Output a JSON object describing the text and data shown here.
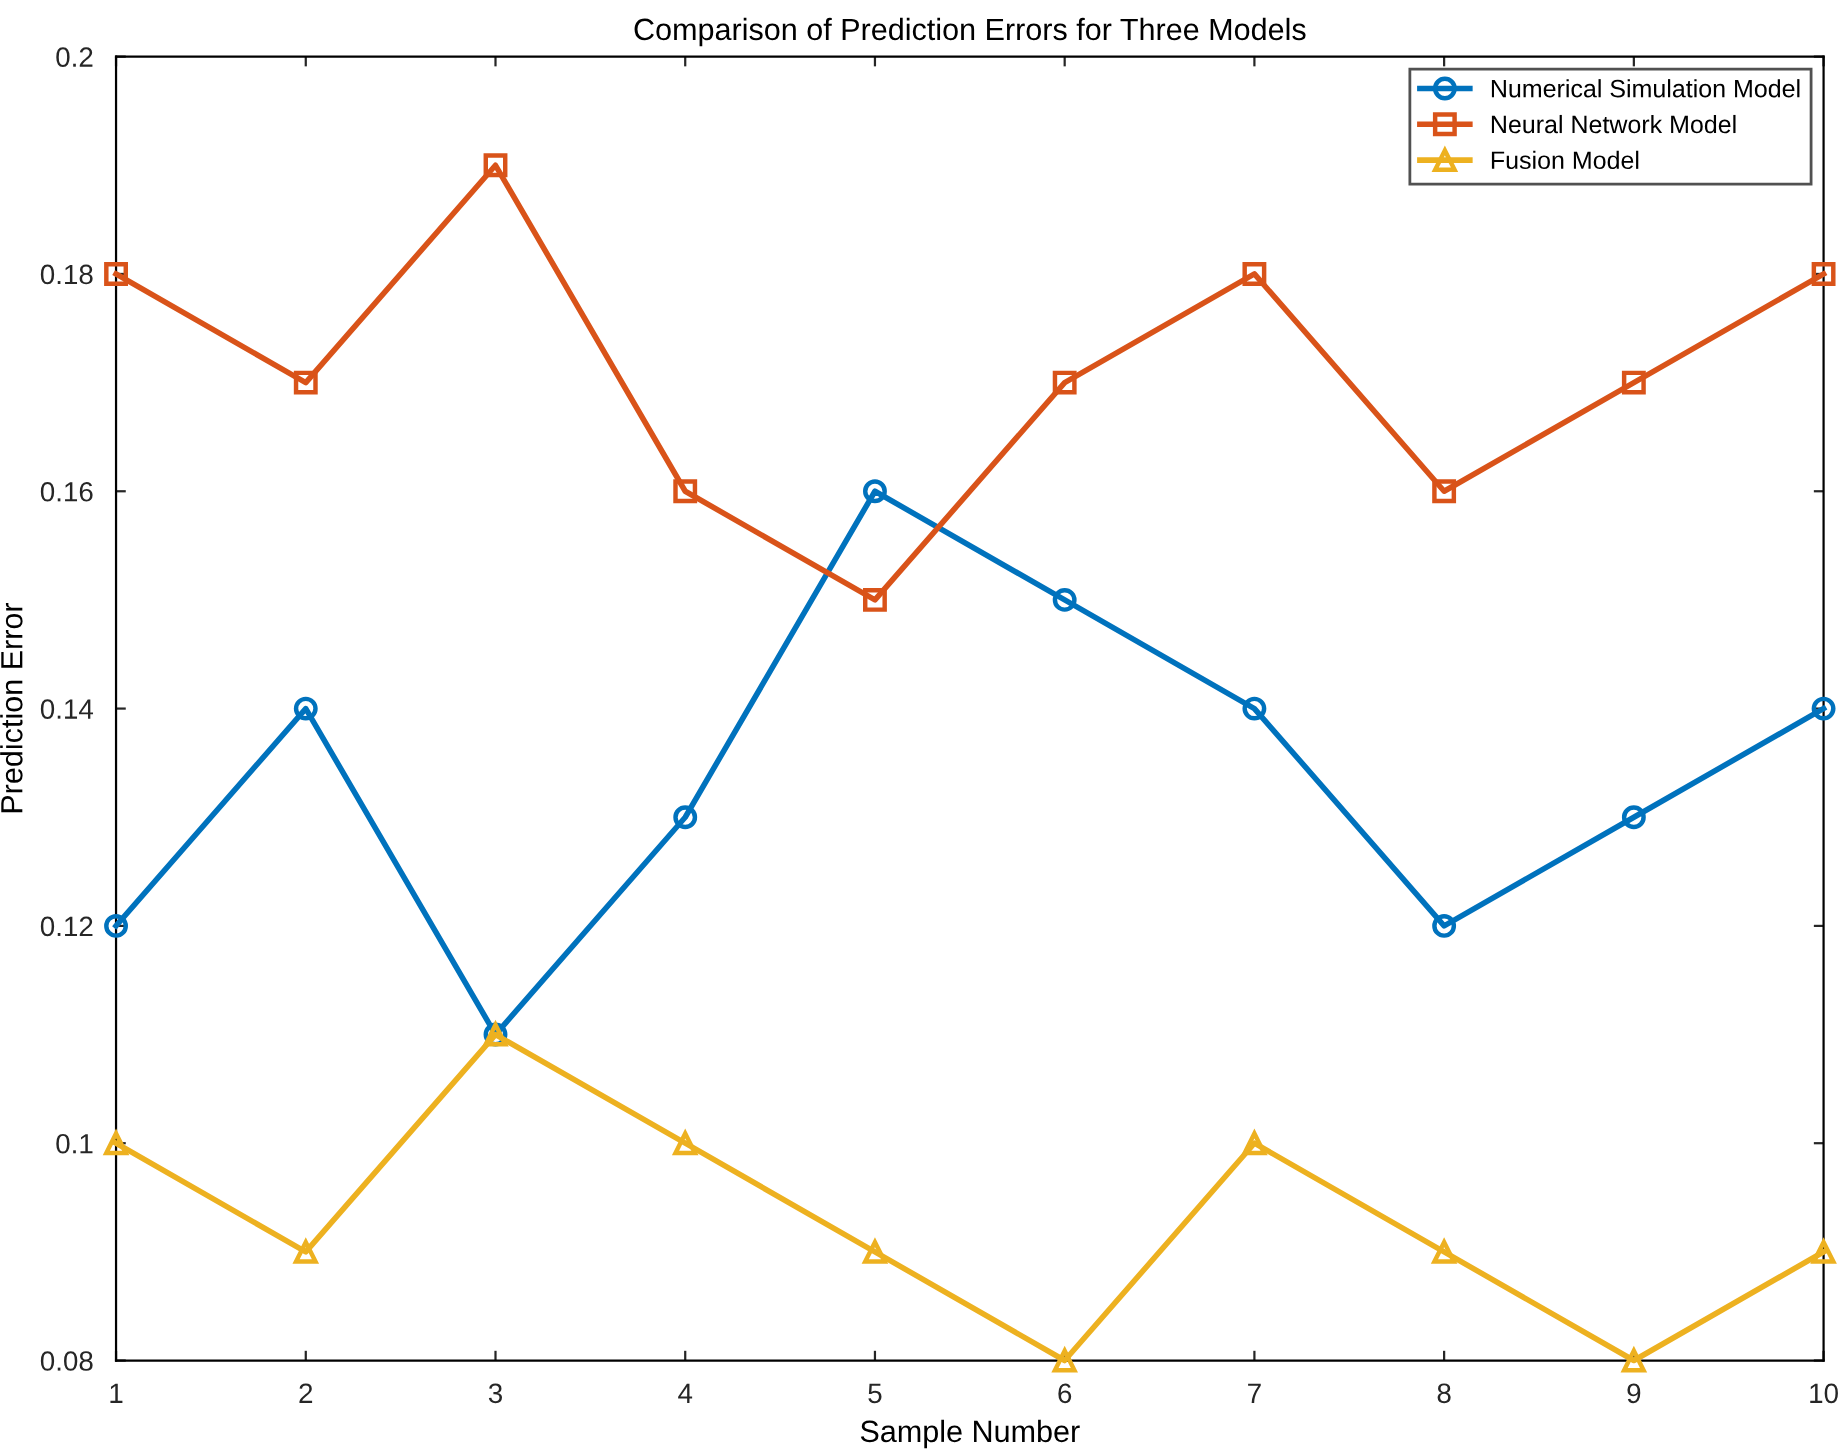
{
  "chart_data": {
    "type": "line",
    "title": "Comparison of Prediction Errors for Three Models",
    "xlabel": "Sample Number",
    "ylabel": "Prediction Error",
    "x": [
      1,
      2,
      3,
      4,
      5,
      6,
      7,
      8,
      9,
      10
    ],
    "series": [
      {
        "name": "Numerical Simulation Model",
        "color": "#0072bd",
        "marker": "circle",
        "values": [
          0.12,
          0.14,
          0.11,
          0.13,
          0.16,
          0.15,
          0.14,
          0.12,
          0.13,
          0.14
        ]
      },
      {
        "name": "Neural Network Model",
        "color": "#d95319",
        "marker": "square",
        "values": [
          0.18,
          0.17,
          0.19,
          0.16,
          0.15,
          0.17,
          0.18,
          0.16,
          0.17,
          0.18
        ]
      },
      {
        "name": "Fusion Model",
        "color": "#edb120",
        "marker": "triangle",
        "values": [
          0.1,
          0.09,
          0.11,
          0.1,
          0.09,
          0.08,
          0.1,
          0.09,
          0.08,
          0.09
        ]
      }
    ],
    "xlim": [
      1,
      10
    ],
    "xticks": [
      1,
      2,
      3,
      4,
      5,
      6,
      7,
      8,
      9,
      10
    ],
    "ylim": [
      0.08,
      0.2
    ],
    "yticks": [
      0.08,
      0.1,
      0.12,
      0.14,
      0.16,
      0.18,
      0.2
    ],
    "grid": false,
    "legend": "top right",
    "line_style": "solid"
  }
}
